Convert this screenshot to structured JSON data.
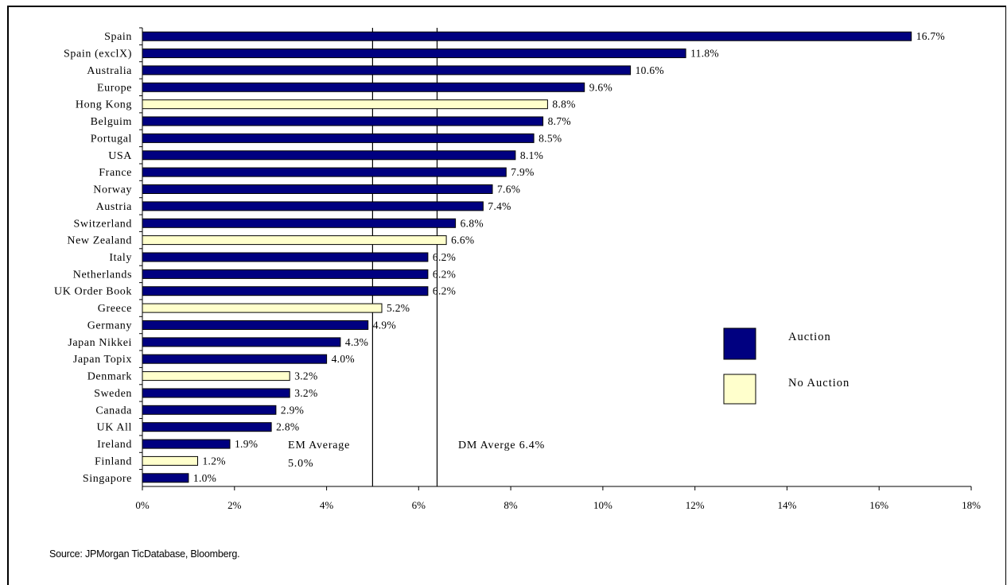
{
  "source": "Source: JPMorgan TicDatabase, Bloomberg.",
  "colors": {
    "auction": "#000080",
    "no_auction": "#ffffcc"
  },
  "chart_data": {
    "type": "bar",
    "orientation": "horizontal",
    "categories": [
      "Spain",
      "Spain (exclX)",
      "Australia",
      "Europe",
      "Hong Kong",
      "Belguim",
      "Portugal",
      "USA",
      "France",
      "Norway",
      "Austria",
      "Switzerland",
      "New Zealand",
      "Italy",
      "Netherlands",
      "UK Order Book",
      "Greece",
      "Germany",
      "Japan Nikkei",
      "Japan Topix",
      "Denmark",
      "Sweden",
      "Canada",
      "UK All",
      "Ireland",
      "Finland",
      "Singapore"
    ],
    "values": [
      16.7,
      11.8,
      10.6,
      9.6,
      8.8,
      8.7,
      8.5,
      8.1,
      7.9,
      7.6,
      7.4,
      6.8,
      6.6,
      6.2,
      6.2,
      6.2,
      5.2,
      4.9,
      4.3,
      4.0,
      3.2,
      3.2,
      2.9,
      2.8,
      1.9,
      1.2,
      1.0
    ],
    "data_labels": [
      "16.7%",
      "11.8%",
      "10.6%",
      "9.6%",
      "8.8%",
      "8.7%",
      "8.5%",
      "8.1%",
      "7.9%",
      "7.6%",
      "7.4%",
      "6.8%",
      "6.6%",
      "6.2%",
      "6.2%",
      "6.2%",
      "5.2%",
      "4.9%",
      "4.3%",
      "4.0%",
      "3.2%",
      "3.2%",
      "2.9%",
      "2.8%",
      "1.9%",
      "1.2%",
      "1.0%"
    ],
    "group": [
      "Auction",
      "Auction",
      "Auction",
      "Auction",
      "No Auction",
      "Auction",
      "Auction",
      "Auction",
      "Auction",
      "Auction",
      "Auction",
      "Auction",
      "No Auction",
      "Auction",
      "Auction",
      "Auction",
      "No Auction",
      "Auction",
      "Auction",
      "Auction",
      "No Auction",
      "Auction",
      "Auction",
      "Auction",
      "Auction",
      "No Auction",
      "Auction"
    ],
    "xlim": [
      0,
      18
    ],
    "xticks": [
      0,
      2,
      4,
      6,
      8,
      10,
      12,
      14,
      16,
      18
    ],
    "xtick_labels": [
      "0%",
      "2%",
      "4%",
      "6%",
      "8%",
      "10%",
      "12%",
      "14%",
      "16%",
      "18%"
    ],
    "legend": {
      "position": "right",
      "entries": [
        "Auction",
        "No Auction"
      ]
    },
    "reference_lines": [
      {
        "value": 5.0,
        "label_lines": [
          "EM Average",
          "5.0%"
        ]
      },
      {
        "value": 6.4,
        "label_lines": [
          "DM Averge 6.4%"
        ]
      }
    ],
    "grid": false
  }
}
